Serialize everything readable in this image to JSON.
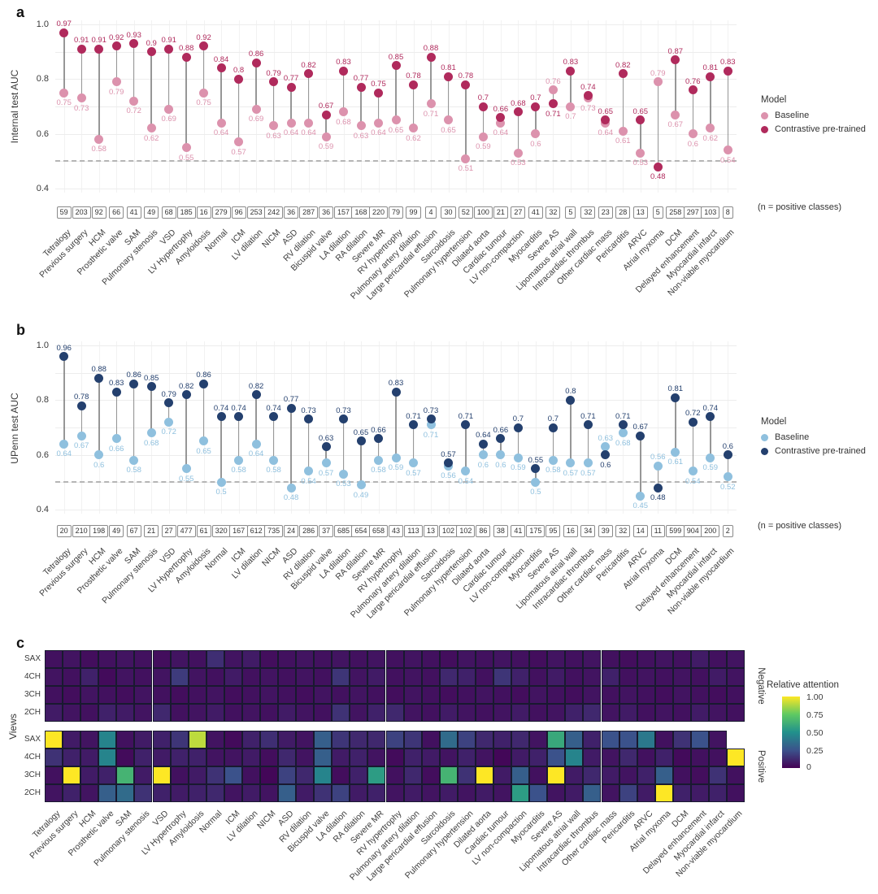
{
  "figure": {
    "panel_letters": [
      "a",
      "b",
      "c"
    ]
  },
  "categories": [
    "Tetralogy",
    "Previous surgery",
    "HCM",
    "Prosthetic valve",
    "SAM",
    "Pulmonary stenosis",
    "VSD",
    "LV Hypertrophy",
    "Amyloidosis",
    "Normal",
    "ICM",
    "LV dilation",
    "NICM",
    "ASD",
    "RV dilation",
    "Bicuspid valve",
    "LA dilation",
    "RA dilation",
    "Severe MR",
    "RV hypertrophy",
    "Pulmonary artery dilation",
    "Large pericardial effusion",
    "Sarcoidosis",
    "Pulmonary hypertension",
    "Dilated aorta",
    "Cardiac tumour",
    "LV non-compaction",
    "Myocarditis",
    "Severe AS",
    "Lipomatous atrial wall",
    "Intracardiac thrombus",
    "Other cardiac mass",
    "Pericarditis",
    "ARVC",
    "Atrial myxoma",
    "DCM",
    "Delayed enhancement",
    "Myocardial infarct",
    "Non-viable myocardium"
  ],
  "chart_data": [
    {
      "panel": "a",
      "type": "dumbbell",
      "ylabel": "Internal test AUC",
      "ylim": [
        0.4,
        1.0
      ],
      "yticks": [
        "1.0",
        "0.8",
        "0.6",
        "0.4"
      ],
      "ytick_values": [
        1.0,
        0.8,
        0.6,
        0.4
      ],
      "reference_line": 0.5,
      "legend": {
        "title": "Model",
        "items": [
          {
            "label": "Baseline",
            "color": "#dc92ad"
          },
          {
            "label": "Contrastive pre-trained",
            "color": "#b02a5c"
          }
        ]
      },
      "n_caption": "(n = positive classes)",
      "series": [
        {
          "name": "Baseline",
          "color": "#dc92ad",
          "values": [
            0.75,
            0.73,
            0.58,
            0.79,
            0.72,
            0.62,
            0.69,
            0.55,
            0.75,
            0.64,
            0.57,
            0.69,
            0.63,
            0.64,
            0.64,
            0.59,
            0.68,
            0.63,
            0.64,
            0.65,
            0.62,
            0.71,
            0.65,
            0.51,
            0.59,
            0.64,
            0.53,
            0.6,
            0.76,
            0.7,
            0.73,
            0.64,
            0.61,
            0.53,
            0.79,
            0.67,
            0.6,
            0.62,
            0.54
          ]
        },
        {
          "name": "Contrastive pre-trained",
          "color": "#b02a5c",
          "values": [
            0.97,
            0.91,
            0.91,
            0.92,
            0.93,
            0.9,
            0.91,
            0.88,
            0.92,
            0.84,
            0.8,
            0.86,
            0.79,
            0.77,
            0.82,
            0.67,
            0.83,
            0.77,
            0.75,
            0.85,
            0.78,
            0.88,
            0.81,
            0.78,
            0.7,
            0.66,
            0.68,
            0.7,
            0.71,
            0.83,
            0.74,
            0.65,
            0.82,
            0.65,
            0.48,
            0.87,
            0.76,
            0.81,
            0.83
          ]
        }
      ],
      "n_positive": [
        59,
        203,
        92,
        66,
        41,
        49,
        68,
        185,
        16,
        279,
        96,
        253,
        242,
        36,
        287,
        36,
        157,
        168,
        220,
        79,
        99,
        4,
        30,
        52,
        100,
        21,
        27,
        41,
        32,
        5,
        32,
        23,
        28,
        13,
        5,
        258,
        297,
        103,
        8
      ]
    },
    {
      "panel": "b",
      "type": "dumbbell",
      "ylabel": "UPenn test AUC",
      "ylim": [
        0.4,
        1.0
      ],
      "yticks": [
        "1.0",
        "0.8",
        "0.6",
        "0.4"
      ],
      "ytick_values": [
        1.0,
        0.8,
        0.6,
        0.4
      ],
      "reference_line": 0.5,
      "legend": {
        "title": "Model",
        "items": [
          {
            "label": "Baseline",
            "color": "#8fc0de"
          },
          {
            "label": "Contrastive pre-trained",
            "color": "#24406e"
          }
        ]
      },
      "n_caption": "(n = positive classes)",
      "series": [
        {
          "name": "Baseline",
          "color": "#8fc0de",
          "values": [
            0.64,
            0.67,
            0.6,
            0.66,
            0.58,
            0.68,
            0.72,
            0.55,
            0.65,
            0.5,
            0.58,
            0.64,
            0.58,
            0.48,
            0.54,
            0.57,
            0.53,
            0.49,
            0.58,
            0.59,
            0.57,
            0.71,
            0.56,
            0.54,
            0.6,
            0.6,
            0.59,
            0.5,
            0.58,
            0.57,
            0.57,
            0.63,
            0.68,
            0.45,
            0.56,
            0.61,
            0.54,
            0.59,
            0.52
          ]
        },
        {
          "name": "Contrastive pre-trained",
          "color": "#24406e",
          "values": [
            0.96,
            0.78,
            0.88,
            0.83,
            0.86,
            0.85,
            0.79,
            0.82,
            0.86,
            0.74,
            0.74,
            0.82,
            0.74,
            0.77,
            0.73,
            0.63,
            0.73,
            0.65,
            0.66,
            0.83,
            0.71,
            0.73,
            0.57,
            0.71,
            0.64,
            0.66,
            0.7,
            0.55,
            0.7,
            0.8,
            0.71,
            0.6,
            0.71,
            0.67,
            0.48,
            0.81,
            0.72,
            0.74,
            0.6
          ]
        }
      ],
      "n_positive": [
        20,
        210,
        198,
        49,
        67,
        21,
        27,
        477,
        61,
        320,
        167,
        612,
        735,
        24,
        286,
        37,
        685,
        654,
        658,
        43,
        113,
        13,
        102,
        102,
        86,
        38,
        41,
        175,
        95,
        16,
        34,
        39,
        32,
        14,
        11,
        599,
        904,
        200,
        2
      ]
    },
    {
      "panel": "c",
      "type": "heatmap",
      "ylabel": "Views",
      "row_labels": [
        "SAX",
        "4CH",
        "3CH",
        "2CH"
      ],
      "group_labels": [
        "Negative",
        "Positive"
      ],
      "colorbar": {
        "title": "Relative attention",
        "tick_labels": [
          "1.00",
          "0.75",
          "0.50",
          "0.25",
          "0"
        ],
        "palette": "viridis"
      },
      "values": {
        "negative": [
          [
            0.05,
            0.06,
            0.04,
            0.05,
            0.06,
            0.05,
            0.04,
            0.06,
            0.05,
            0.14,
            0.06,
            0.08,
            0.04,
            0.05,
            0.06,
            0.05,
            0.06,
            0.05,
            0.06,
            0.05,
            0.06,
            0.05,
            0.04,
            0.06,
            0.05,
            0.06,
            0.05,
            0.04,
            0.06,
            0.05,
            0.06,
            0.05,
            0.04,
            0.05,
            0.06,
            0.05,
            0.08,
            0.05,
            0.06
          ],
          [
            0.06,
            0.05,
            0.1,
            0.03,
            0.06,
            0.05,
            0.06,
            0.18,
            0.06,
            0.05,
            0.08,
            0.05,
            0.06,
            0.05,
            0.06,
            0.05,
            0.16,
            0.06,
            0.08,
            0.05,
            0.06,
            0.05,
            0.12,
            0.1,
            0.05,
            0.16,
            0.1,
            0.05,
            0.08,
            0.05,
            0.06,
            0.1,
            0.05,
            0.06,
            0.05,
            0.06,
            0.05,
            0.08,
            0.06
          ],
          [
            0.05,
            0.04,
            0.06,
            0.05,
            0.04,
            0.06,
            0.05,
            0.04,
            0.05,
            0.06,
            0.04,
            0.05,
            0.06,
            0.05,
            0.04,
            0.06,
            0.05,
            0.06,
            0.05,
            0.04,
            0.06,
            0.05,
            0.04,
            0.05,
            0.06,
            0.05,
            0.04,
            0.06,
            0.05,
            0.04,
            0.06,
            0.05,
            0.06,
            0.05,
            0.04,
            0.06,
            0.05,
            0.04,
            0.05
          ],
          [
            0.08,
            0.06,
            0.05,
            0.1,
            0.08,
            0.06,
            0.12,
            0.05,
            0.06,
            0.08,
            0.05,
            0.06,
            0.05,
            0.08,
            0.06,
            0.05,
            0.15,
            0.06,
            0.1,
            0.12,
            0.06,
            0.05,
            0.08,
            0.06,
            0.05,
            0.06,
            0.08,
            0.05,
            0.06,
            0.1,
            0.12,
            0.06,
            0.08,
            0.05,
            0.06,
            0.05,
            0.08,
            0.06,
            0.05
          ]
        ],
        "positive": [
          [
            1.0,
            0.08,
            0.06,
            0.45,
            0.05,
            0.08,
            0.1,
            0.16,
            0.9,
            0.06,
            0.03,
            0.1,
            0.14,
            0.08,
            0.06,
            0.3,
            0.16,
            0.12,
            0.12,
            0.2,
            0.16,
            0.05,
            0.35,
            0.2,
            0.12,
            0.1,
            0.12,
            0.06,
            0.6,
            0.3,
            0.1,
            0.25,
            0.25,
            0.4,
            0.05,
            0.15,
            0.25,
            0.06,
            null
          ],
          [
            0.15,
            0.1,
            0.08,
            0.45,
            0.03,
            0.1,
            0.08,
            0.1,
            0.1,
            0.06,
            0.06,
            0.08,
            0.04,
            0.12,
            0.06,
            0.3,
            0.08,
            0.1,
            0.06,
            0.03,
            0.1,
            0.08,
            0.06,
            0.1,
            0.06,
            0.02,
            0.08,
            0.1,
            0.25,
            0.45,
            0.08,
            0.06,
            0.12,
            0.05,
            0.1,
            0.03,
            0.05,
            0.05,
            1.0
          ],
          [
            0.05,
            1.0,
            0.08,
            0.1,
            0.65,
            0.08,
            1.0,
            0.05,
            0.08,
            0.15,
            0.25,
            0.05,
            0.02,
            0.2,
            0.12,
            0.45,
            0.04,
            0.1,
            0.55,
            0.05,
            0.12,
            0.04,
            0.65,
            0.15,
            1.0,
            0.08,
            0.3,
            0.05,
            1.0,
            0.08,
            0.12,
            0.08,
            0.06,
            0.1,
            0.3,
            0.05,
            0.04,
            0.15,
            0.05
          ],
          [
            0.06,
            0.1,
            0.06,
            0.3,
            0.35,
            0.15,
            0.1,
            0.08,
            0.1,
            0.12,
            0.06,
            0.08,
            0.06,
            0.3,
            0.08,
            0.15,
            0.2,
            0.08,
            0.1,
            0.06,
            0.08,
            0.06,
            0.08,
            0.06,
            0.08,
            0.06,
            0.55,
            0.25,
            0.06,
            0.08,
            0.3,
            0.06,
            0.2,
            0.08,
            1.0,
            0.1,
            0.08,
            0.1,
            0.05
          ]
        ]
      }
    }
  ]
}
